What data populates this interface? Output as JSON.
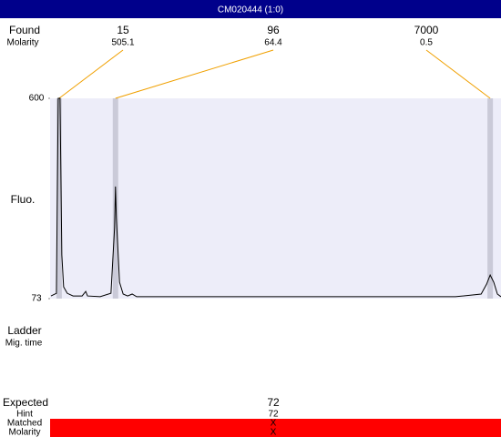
{
  "header": {
    "title": "CM020444 (1:0)"
  },
  "found": {
    "label": "Found",
    "molarity_label": "Molarity"
  },
  "chart_data": {
    "type": "line",
    "ylabel": "Fluo.",
    "ylim": [
      73,
      600
    ],
    "yticks": [
      73,
      600
    ],
    "xlim": [
      0,
      100
    ],
    "peaks": [
      {
        "size": 15,
        "molarity": 505.1,
        "x": 2.0
      },
      {
        "size": 96,
        "molarity": 64.4,
        "x": 14.5
      },
      {
        "size": 7000,
        "molarity": 0.5,
        "x": 97.6
      }
    ],
    "x": [
      0.2,
      1.4,
      1.8,
      2.2,
      2.6,
      3.0,
      3.8,
      5.1,
      7.1,
      7.9,
      8.3,
      11.1,
      13.5,
      14.3,
      14.5,
      14.7,
      15.4,
      16.2,
      17.2,
      18.2,
      19.2,
      29.3,
      49.5,
      69.7,
      89.9,
      95.6,
      96.8,
      97.6,
      98.4,
      99.2,
      100
    ],
    "series": [
      {
        "color": "#000000",
        "values": [
          80,
          87,
          600,
          600,
          188,
          104,
          87,
          80,
          80,
          92,
          80,
          78,
          87,
          260,
          368,
          284,
          116,
          85,
          80,
          85,
          78,
          78,
          78,
          78,
          78,
          85,
          111,
          135,
          116,
          85,
          78
        ]
      }
    ]
  },
  "ladder": {
    "label": "Ladder",
    "mig_label": "Mig. time"
  },
  "expected": {
    "label": "Expected",
    "value": 72,
    "hint_label": "Hint",
    "hint": 72,
    "matched_label": "Matched",
    "matched": "X",
    "molarity_label": "Molarity",
    "molarity": "X"
  }
}
